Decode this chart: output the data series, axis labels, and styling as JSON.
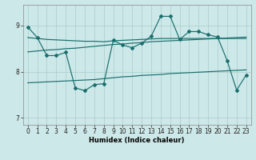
{
  "xlabel": "Humidex (Indice chaleur)",
  "ylim": [
    6.85,
    9.45
  ],
  "yticks": [
    7,
    8,
    9
  ],
  "xlim": [
    -0.5,
    23.5
  ],
  "xticks": [
    0,
    1,
    2,
    3,
    4,
    5,
    6,
    7,
    8,
    9,
    10,
    11,
    12,
    13,
    14,
    15,
    16,
    17,
    18,
    19,
    20,
    21,
    22,
    23
  ],
  "bg_color": "#cde8e8",
  "grid_color": "#a8cccc",
  "line_color": "#1a6e6e",
  "line1_x": [
    0,
    1,
    2,
    3,
    4,
    5,
    6,
    7,
    8,
    9,
    10,
    11,
    12,
    13,
    14,
    15,
    16,
    17,
    18,
    19,
    20,
    21,
    22,
    23
  ],
  "line1_y": [
    8.97,
    8.74,
    8.35,
    8.35,
    8.42,
    7.65,
    7.59,
    7.72,
    7.74,
    8.68,
    8.58,
    8.52,
    8.62,
    8.77,
    9.2,
    9.2,
    8.7,
    8.87,
    8.87,
    8.8,
    8.75,
    8.24,
    7.6,
    7.93
  ],
  "line2_x": [
    0,
    1,
    2,
    3,
    4,
    5,
    6,
    7,
    8,
    9,
    10,
    11,
    12,
    13,
    14,
    15,
    16,
    17,
    18,
    19,
    20,
    21,
    22,
    23
  ],
  "line2_y": [
    8.74,
    8.72,
    8.7,
    8.69,
    8.68,
    8.67,
    8.66,
    8.66,
    8.65,
    8.67,
    8.68,
    8.69,
    8.7,
    8.71,
    8.72,
    8.72,
    8.72,
    8.72,
    8.72,
    8.72,
    8.72,
    8.72,
    8.72,
    8.72
  ],
  "line3_x": [
    0,
    1,
    2,
    3,
    4,
    5,
    6,
    7,
    8,
    9,
    10,
    11,
    12,
    13,
    14,
    15,
    16,
    17,
    18,
    19,
    20,
    21,
    22,
    23
  ],
  "line3_y": [
    8.43,
    8.45,
    8.47,
    8.48,
    8.5,
    8.51,
    8.53,
    8.55,
    8.57,
    8.59,
    8.6,
    8.62,
    8.63,
    8.65,
    8.66,
    8.67,
    8.68,
    8.69,
    8.7,
    8.71,
    8.72,
    8.73,
    8.74,
    8.75
  ],
  "line4_x": [
    0,
    1,
    2,
    3,
    4,
    5,
    6,
    7,
    8,
    9,
    10,
    11,
    12,
    13,
    14,
    15,
    16,
    17,
    18,
    19,
    20,
    21,
    22,
    23
  ],
  "line4_y": [
    7.76,
    7.77,
    7.78,
    7.79,
    7.8,
    7.81,
    7.82,
    7.83,
    7.85,
    7.87,
    7.89,
    7.9,
    7.92,
    7.93,
    7.94,
    7.96,
    7.97,
    7.98,
    7.99,
    8.0,
    8.01,
    8.02,
    8.03,
    8.04
  ]
}
